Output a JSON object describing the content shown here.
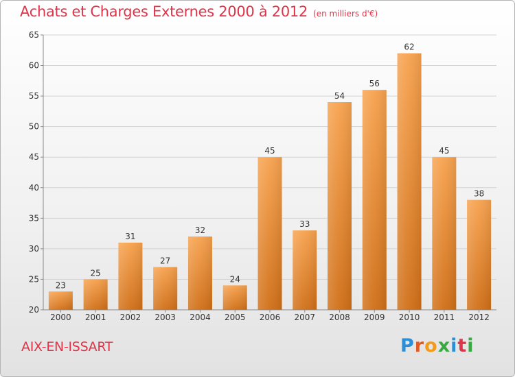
{
  "title": "Achats et Charges Externes 2000 à 2012",
  "unit": "(en milliers d'€)",
  "commune": "AIX-EN-ISSART",
  "logo": {
    "letters": [
      "P",
      "r",
      "o",
      "x",
      "i",
      "t",
      "i"
    ],
    "colors": [
      "#2a8fd6",
      "#e05a22",
      "#f29a1a",
      "#38a840",
      "#2a8fd6",
      "#e0344a",
      "#38a840"
    ]
  },
  "colors": {
    "bar_top": "#f7a24e",
    "bar_bottom": "#d06f17",
    "title": "#e0344a"
  },
  "chart_data": {
    "type": "bar",
    "categories": [
      "2000",
      "2001",
      "2002",
      "2003",
      "2004",
      "2005",
      "2006",
      "2007",
      "2008",
      "2009",
      "2010",
      "2011",
      "2012"
    ],
    "values": [
      23,
      25,
      31,
      27,
      32,
      24,
      45,
      33,
      54,
      56,
      62,
      45,
      38
    ],
    "title": "Achats et Charges Externes 2000 à 2012",
    "xlabel": "",
    "ylabel": "",
    "ylim": [
      20,
      65
    ],
    "yticks": [
      20,
      25,
      30,
      35,
      40,
      45,
      50,
      55,
      60,
      65
    ],
    "grid": true,
    "data_labels": true
  }
}
